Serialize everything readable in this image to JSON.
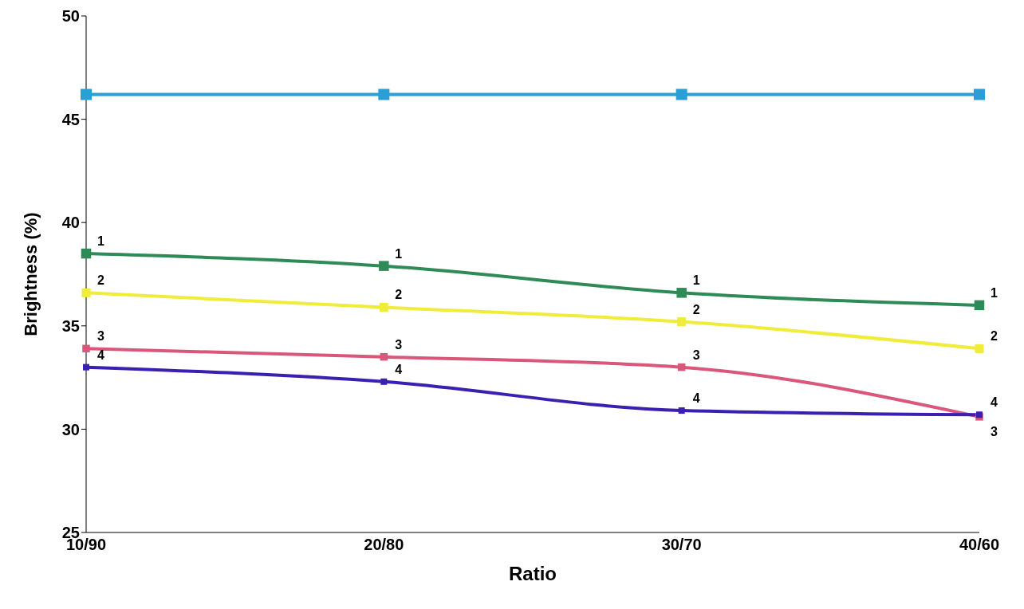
{
  "chart_data": {
    "type": "line",
    "xlabel": "Ratio",
    "ylabel": "Brightness (%)",
    "categories": [
      "10/90",
      "20/80",
      "30/70",
      "40/60"
    ],
    "ylim": [
      25,
      50
    ],
    "yticks": [
      25,
      30,
      35,
      40,
      45,
      50
    ],
    "grid": false,
    "legend": false,
    "marker": "square",
    "line_style": "solid",
    "series": [
      {
        "color": "#2a9fd6",
        "values": [
          46.2,
          46.2,
          46.2,
          46.2
        ]
      },
      {
        "name": "1",
        "color": "#2e8b57",
        "values": [
          38.5,
          37.9,
          36.6,
          36.0
        ]
      },
      {
        "name": "2",
        "color": "#f0ec3a",
        "values": [
          36.6,
          35.9,
          35.2,
          33.9
        ]
      },
      {
        "name": "3",
        "color": "#d9577a",
        "values": [
          33.9,
          33.5,
          33.0,
          30.6
        ]
      },
      {
        "name": "4",
        "color": "#3a1fb0",
        "values": [
          33.0,
          32.3,
          30.9,
          30.7
        ]
      }
    ]
  }
}
